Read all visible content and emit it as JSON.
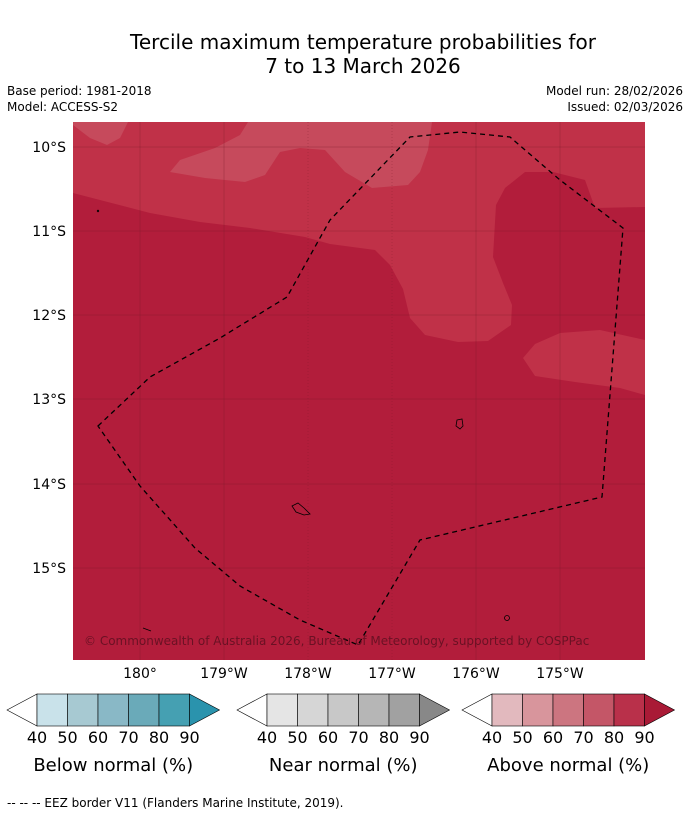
{
  "title": {
    "line1": "Tercile maximum temperature probabilities for",
    "line2": "7 to 13 March 2026"
  },
  "meta_left": {
    "base_period": "Base period: 1981-2018",
    "model": "Model: ACCESS-S2"
  },
  "meta_right": {
    "model_run": "Model run: 28/02/2026",
    "issued": "Issued: 02/03/2026"
  },
  "map": {
    "lat_labels": [
      "10°S",
      "11°S",
      "12°S",
      "13°S",
      "14°S",
      "15°S"
    ],
    "lon_labels": [
      "180°",
      "179°W",
      "178°W",
      "177°W",
      "176°W",
      "175°W"
    ],
    "copyright": "© Commonwealth of Australia 2026, Bureau of Meteorology, supported by COSPPac",
    "colors": {
      "above_80": "#c03148",
      "above_90": "#b21d3b",
      "above_70": "#c64a5c"
    }
  },
  "colorbars": [
    {
      "name": "below",
      "title": "Below normal (%)",
      "ticks": [
        "40",
        "50",
        "60",
        "70",
        "80",
        "90"
      ],
      "colors": [
        "#ffffff",
        "#c9e2ea",
        "#a7c9d2",
        "#89b8c6",
        "#6aaab9",
        "#45a0b2",
        "#2a93ad"
      ]
    },
    {
      "name": "near",
      "title": "Near normal (%)",
      "ticks": [
        "40",
        "50",
        "60",
        "70",
        "80",
        "90"
      ],
      "colors": [
        "#ffffff",
        "#e5e5e5",
        "#d6d6d6",
        "#c8c8c8",
        "#b6b6b6",
        "#a1a1a1",
        "#888888"
      ]
    },
    {
      "name": "above",
      "title": "Above normal (%)",
      "ticks": [
        "40",
        "50",
        "60",
        "70",
        "80",
        "90"
      ],
      "colors": [
        "#ffffff",
        "#e2b9be",
        "#d8959c",
        "#cc7580",
        "#c45667",
        "#b9304a",
        "#a91a36"
      ]
    }
  ],
  "footer": "--  --  -- EEZ border V11 (Flanders Marine Institute, 2019)."
}
